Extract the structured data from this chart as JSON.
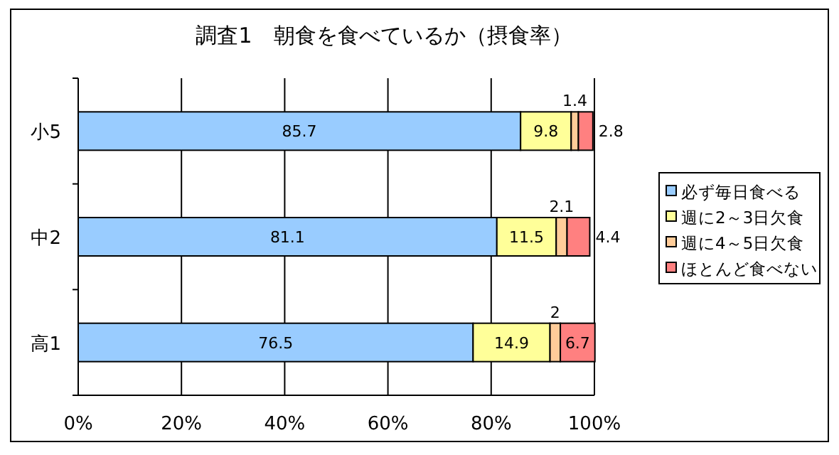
{
  "chart_data": {
    "type": "bar",
    "orientation": "horizontal",
    "stacked": true,
    "title": "調査1　朝食を食べているか（摂食率）",
    "categories": [
      "小5",
      "中2",
      "高1"
    ],
    "series": [
      {
        "name": "必ず毎日食べる",
        "color": "#99ccff",
        "values": [
          85.7,
          81.1,
          76.5
        ]
      },
      {
        "name": "週に2～3日欠食",
        "color": "#ffff99",
        "values": [
          9.8,
          11.5,
          14.9
        ]
      },
      {
        "name": "週に4～5日欠食",
        "color": "#ffcc99",
        "values": [
          1.4,
          2.1,
          2
        ]
      },
      {
        "name": "ほとんど食べない",
        "color": "#ff8080",
        "values": [
          2.8,
          4.4,
          6.7
        ]
      }
    ],
    "xlim": [
      0,
      100
    ],
    "xticks": [
      {
        "value": 0,
        "label": "0%"
      },
      {
        "value": 20,
        "label": "20%"
      },
      {
        "value": 40,
        "label": "40%"
      },
      {
        "value": 60,
        "label": "60%"
      },
      {
        "value": 80,
        "label": "80%"
      },
      {
        "value": 100,
        "label": "100%"
      }
    ],
    "grid": "x",
    "legend": "right",
    "data_labels": true
  }
}
